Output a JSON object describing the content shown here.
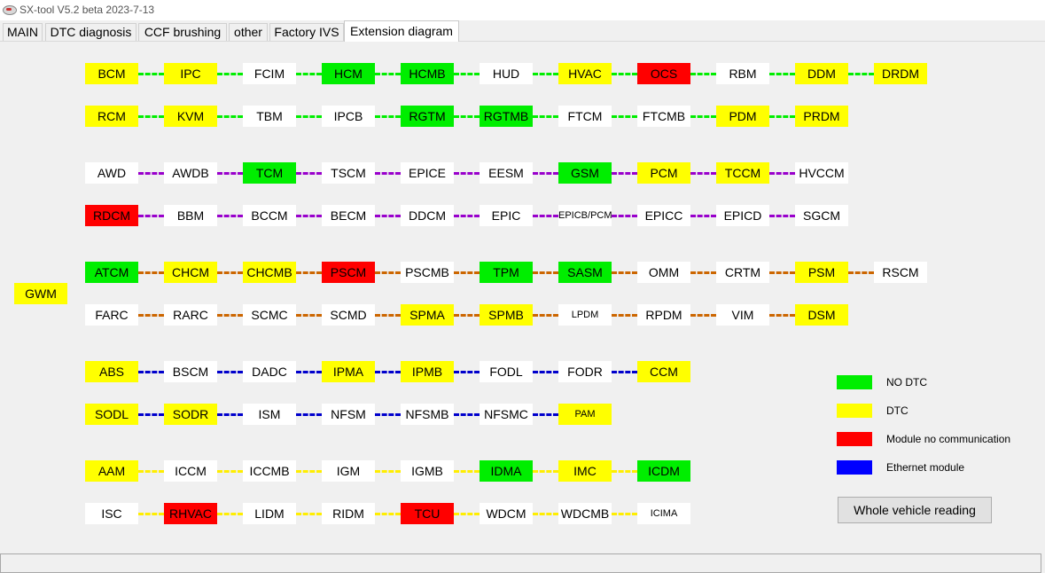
{
  "window": {
    "title": "SX-tool V5.2 beta 2023-7-13"
  },
  "tabs": [
    {
      "label": "MAIN",
      "active": false
    },
    {
      "label": "DTC diagnosis",
      "active": false
    },
    {
      "label": "CCF brushing",
      "active": false
    },
    {
      "label": "other",
      "active": false
    },
    {
      "label": "Factory IVS",
      "active": false
    },
    {
      "label": "Extension diagram",
      "active": true
    }
  ],
  "status_colors": {
    "ok": "#00ee00",
    "dtc": "#ffff00",
    "nocomm": "#ff0000",
    "eth": "#0000ff",
    "unknown": "#ffffff"
  },
  "gateway": {
    "label": "GWM",
    "status": "dtc"
  },
  "buses": [
    {
      "color": "#00ee00",
      "rows": [
        [
          {
            "l": "BCM",
            "s": "dtc"
          },
          {
            "l": "IPC",
            "s": "dtc"
          },
          {
            "l": "FCIM",
            "s": "unknown"
          },
          {
            "l": "HCM",
            "s": "ok"
          },
          {
            "l": "HCMB",
            "s": "ok"
          },
          {
            "l": "HUD",
            "s": "unknown"
          },
          {
            "l": "HVAC",
            "s": "dtc"
          },
          {
            "l": "OCS",
            "s": "nocomm"
          },
          {
            "l": "RBM",
            "s": "unknown"
          },
          {
            "l": "DDM",
            "s": "dtc"
          },
          {
            "l": "DRDM",
            "s": "dtc"
          }
        ],
        [
          {
            "l": "RCM",
            "s": "dtc"
          },
          {
            "l": "KVM",
            "s": "dtc"
          },
          {
            "l": "TBM",
            "s": "unknown"
          },
          {
            "l": "IPCB",
            "s": "unknown"
          },
          {
            "l": "RGTM",
            "s": "ok"
          },
          {
            "l": "RGTMB",
            "s": "ok"
          },
          {
            "l": "FTCM",
            "s": "unknown"
          },
          {
            "l": "FTCMB",
            "s": "unknown"
          },
          {
            "l": "PDM",
            "s": "dtc"
          },
          {
            "l": "PRDM",
            "s": "dtc"
          }
        ]
      ]
    },
    {
      "color": "#9900cc",
      "rows": [
        [
          {
            "l": "AWD",
            "s": "unknown"
          },
          {
            "l": "AWDB",
            "s": "unknown"
          },
          {
            "l": "TCM",
            "s": "ok"
          },
          {
            "l": "TSCM",
            "s": "unknown"
          },
          {
            "l": "EPICE",
            "s": "unknown"
          },
          {
            "l": "EESM",
            "s": "unknown"
          },
          {
            "l": "GSM",
            "s": "ok"
          },
          {
            "l": "PCM",
            "s": "dtc"
          },
          {
            "l": "TCCM",
            "s": "dtc"
          },
          {
            "l": "HVCCM",
            "s": "unknown"
          }
        ],
        [
          {
            "l": "RDCM",
            "s": "nocomm"
          },
          {
            "l": "BBM",
            "s": "unknown"
          },
          {
            "l": "BCCM",
            "s": "unknown"
          },
          {
            "l": "BECM",
            "s": "unknown"
          },
          {
            "l": "DDCM",
            "s": "unknown"
          },
          {
            "l": "EPIC",
            "s": "unknown"
          },
          {
            "l": "EPICB/PCM",
            "s": "unknown",
            "small": true
          },
          {
            "l": "EPICC",
            "s": "unknown"
          },
          {
            "l": "EPICD",
            "s": "unknown"
          },
          {
            "l": "SGCM",
            "s": "unknown"
          }
        ]
      ]
    },
    {
      "color": "#cc6600",
      "rows": [
        [
          {
            "l": "ATCM",
            "s": "ok"
          },
          {
            "l": "CHCM",
            "s": "dtc"
          },
          {
            "l": "CHCMB",
            "s": "dtc"
          },
          {
            "l": "PSCM",
            "s": "nocomm"
          },
          {
            "l": "PSCMB",
            "s": "unknown"
          },
          {
            "l": "TPM",
            "s": "ok"
          },
          {
            "l": "SASM",
            "s": "ok"
          },
          {
            "l": "OMM",
            "s": "unknown"
          },
          {
            "l": "CRTM",
            "s": "unknown"
          },
          {
            "l": "PSM",
            "s": "dtc"
          },
          {
            "l": "RSCM",
            "s": "unknown"
          }
        ],
        [
          {
            "l": "FARC",
            "s": "unknown"
          },
          {
            "l": "RARC",
            "s": "unknown"
          },
          {
            "l": "SCMC",
            "s": "unknown"
          },
          {
            "l": "SCMD",
            "s": "unknown"
          },
          {
            "l": "SPMA",
            "s": "dtc"
          },
          {
            "l": "SPMB",
            "s": "dtc"
          },
          {
            "l": "LPDM",
            "s": "unknown",
            "small": true
          },
          {
            "l": "RPDM",
            "s": "unknown"
          },
          {
            "l": "VIM",
            "s": "unknown"
          },
          {
            "l": "DSM",
            "s": "dtc"
          }
        ]
      ]
    },
    {
      "color": "#0000cc",
      "rows": [
        [
          {
            "l": "ABS",
            "s": "dtc"
          },
          {
            "l": "BSCM",
            "s": "unknown"
          },
          {
            "l": "DADC",
            "s": "unknown"
          },
          {
            "l": "IPMA",
            "s": "dtc"
          },
          {
            "l": "IPMB",
            "s": "dtc"
          },
          {
            "l": "FODL",
            "s": "unknown"
          },
          {
            "l": "FODR",
            "s": "unknown"
          },
          {
            "l": "CCM",
            "s": "dtc"
          }
        ],
        [
          {
            "l": "SODL",
            "s": "dtc"
          },
          {
            "l": "SODR",
            "s": "dtc"
          },
          {
            "l": "ISM",
            "s": "unknown"
          },
          {
            "l": "NFSM",
            "s": "unknown"
          },
          {
            "l": "NFSMB",
            "s": "unknown"
          },
          {
            "l": "NFSMC",
            "s": "unknown"
          },
          {
            "l": "PAM",
            "s": "dtc",
            "small": true
          }
        ]
      ]
    },
    {
      "color": "#ffee00",
      "rows": [
        [
          {
            "l": "AAM",
            "s": "dtc"
          },
          {
            "l": "ICCM",
            "s": "unknown"
          },
          {
            "l": "ICCMB",
            "s": "unknown"
          },
          {
            "l": "IGM",
            "s": "unknown"
          },
          {
            "l": "IGMB",
            "s": "unknown"
          },
          {
            "l": "IDMA",
            "s": "ok"
          },
          {
            "l": "IMC",
            "s": "dtc"
          },
          {
            "l": "ICDM",
            "s": "ok"
          }
        ],
        [
          {
            "l": "ISC",
            "s": "unknown"
          },
          {
            "l": "RHVAC",
            "s": "nocomm"
          },
          {
            "l": "LIDM",
            "s": "unknown"
          },
          {
            "l": "RIDM",
            "s": "unknown"
          },
          {
            "l": "TCU",
            "s": "nocomm"
          },
          {
            "l": "WDCM",
            "s": "unknown"
          },
          {
            "l": "WDCMB",
            "s": "unknown"
          },
          {
            "l": "ICIMA",
            "s": "unknown",
            "small": true
          }
        ]
      ]
    }
  ],
  "legend": [
    {
      "label": "NO DTC",
      "color": "#00ee00"
    },
    {
      "label": "DTC",
      "color": "#ffff00"
    },
    {
      "label": "Module no communication",
      "color": "#ff0000"
    },
    {
      "label": "Ethernet module",
      "color": "#0000ff"
    }
  ],
  "actions": {
    "whole_vehicle_reading": "Whole vehicle reading"
  }
}
